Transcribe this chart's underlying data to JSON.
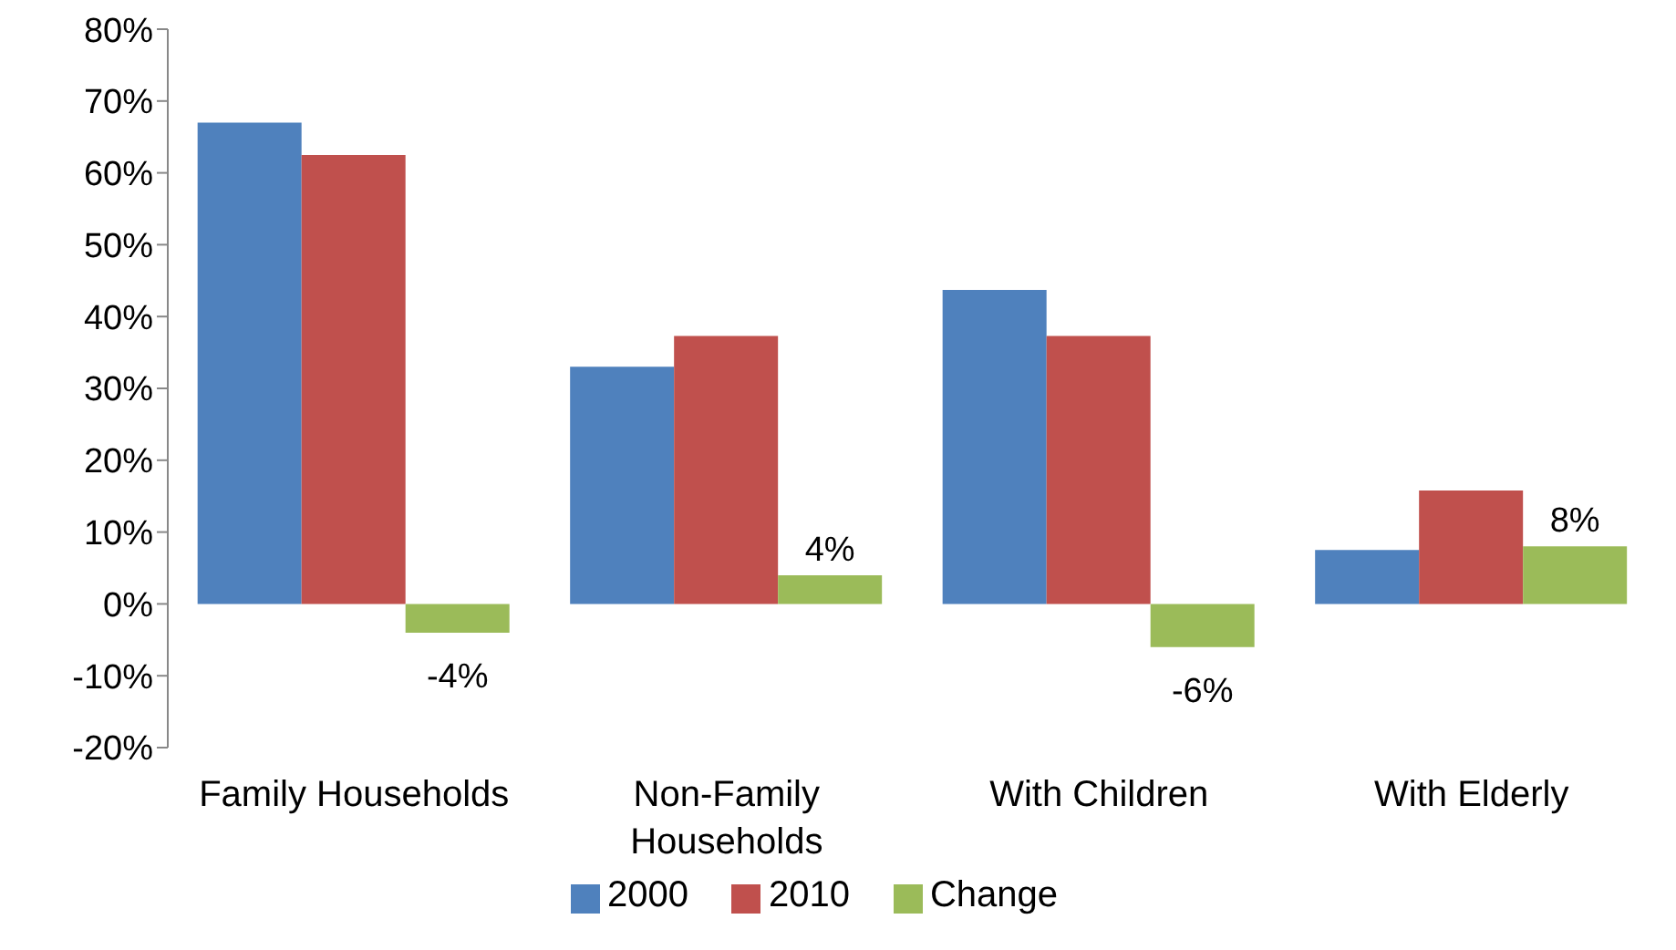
{
  "chart_data": {
    "type": "bar",
    "categories": [
      "Family Households",
      "Non-Family Households",
      "With Children",
      "With Elderly"
    ],
    "series": [
      {
        "name": "2000",
        "color": "#4f81bd",
        "values": [
          67,
          33,
          43.7,
          7.5
        ]
      },
      {
        "name": "2010",
        "color": "#c0504d",
        "values": [
          62.5,
          37.3,
          37.3,
          15.8
        ]
      },
      {
        "name": "Change",
        "color": "#9bbb59",
        "values": [
          -4,
          4,
          -6,
          8
        ],
        "value_labels": [
          "-4%",
          "4%",
          "-6%",
          "8%"
        ]
      }
    ],
    "ylim": [
      -20,
      80
    ],
    "yticks": [
      {
        "value": -20,
        "label": "-20%"
      },
      {
        "value": -10,
        "label": "-10%"
      },
      {
        "value": 0,
        "label": "0%"
      },
      {
        "value": 10,
        "label": "10%"
      },
      {
        "value": 20,
        "label": "20%"
      },
      {
        "value": 30,
        "label": "30%"
      },
      {
        "value": 40,
        "label": "40%"
      },
      {
        "value": 50,
        "label": "50%"
      },
      {
        "value": 60,
        "label": "60%"
      },
      {
        "value": 70,
        "label": "70%"
      },
      {
        "value": 80,
        "label": "80%"
      }
    ],
    "grid": false,
    "legend": "bottom"
  }
}
